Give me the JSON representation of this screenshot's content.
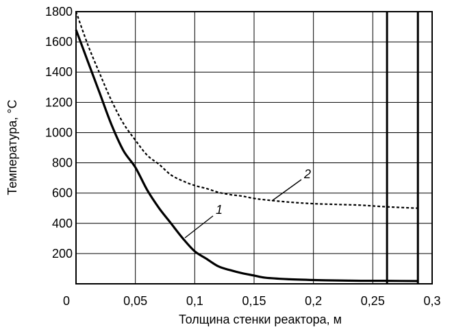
{
  "chart_data": {
    "type": "line",
    "xlabel": "Толщина стенки реактора, м",
    "ylabel": "Температура, °С",
    "xlim": [
      0,
      0.3
    ],
    "ylim": [
      0,
      1800
    ],
    "grid": true,
    "x_ticks": [
      "0",
      "0,05",
      "0,1",
      "0,15",
      "0,2",
      "0,25",
      "0,3"
    ],
    "y_ticks": [
      "200",
      "400",
      "600",
      "800",
      "1000",
      "1200",
      "1400",
      "1600",
      "1800"
    ],
    "reference_lines_x": [
      0.262,
      0.288
    ],
    "series": [
      {
        "name": "1",
        "style": "solid",
        "x": [
          0,
          0.01,
          0.02,
          0.03,
          0.04,
          0.05,
          0.06,
          0.07,
          0.08,
          0.09,
          0.1,
          0.11,
          0.12,
          0.13,
          0.14,
          0.15,
          0.16,
          0.18,
          0.2,
          0.22,
          0.24,
          0.26,
          0.288
        ],
        "y": [
          1680,
          1470,
          1260,
          1050,
          880,
          770,
          620,
          500,
          400,
          300,
          215,
          165,
          115,
          90,
          70,
          55,
          40,
          30,
          25,
          22,
          20,
          20,
          18
        ]
      },
      {
        "name": "2",
        "style": "dashed",
        "x": [
          0,
          0.01,
          0.02,
          0.03,
          0.04,
          0.05,
          0.06,
          0.07,
          0.08,
          0.09,
          0.1,
          0.11,
          0.12,
          0.13,
          0.14,
          0.15,
          0.16,
          0.18,
          0.2,
          0.22,
          0.24,
          0.26,
          0.288
        ],
        "y": [
          1800,
          1580,
          1390,
          1210,
          1060,
          950,
          850,
          790,
          720,
          680,
          650,
          630,
          605,
          590,
          580,
          565,
          555,
          540,
          530,
          525,
          520,
          510,
          500
        ]
      }
    ],
    "annotations": [
      {
        "text": "1",
        "series": "1"
      },
      {
        "text": "2",
        "series": "2"
      }
    ]
  }
}
